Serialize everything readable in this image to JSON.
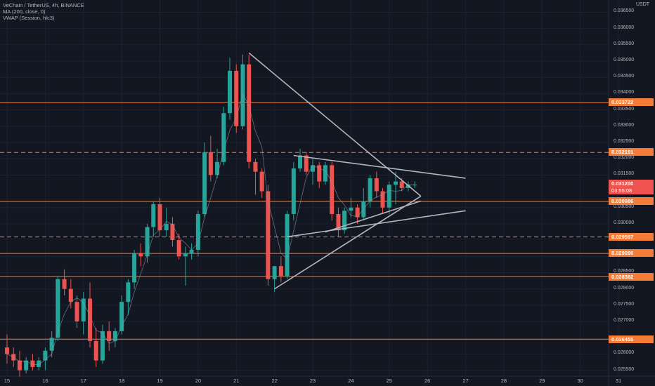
{
  "header": {
    "symbol_line": "VeChain / TetherUS, 4h, BINANCE",
    "ma_line": "MA (200, close, 0)",
    "vwap_line": "VWAP (Session, hlc3)"
  },
  "axis": {
    "currency": "USDT",
    "y_ticks": [
      "0.036500",
      "0.036000",
      "0.035500",
      "0.035000",
      "0.034500",
      "0.034000",
      "0.033500",
      "0.033000",
      "0.032500",
      "0.032000",
      "0.031500",
      "0.030500",
      "0.030000",
      "0.029000",
      "0.028500",
      "0.028000",
      "0.027500",
      "0.027000",
      "0.026000",
      "0.025500"
    ],
    "x_ticks": [
      "15",
      "16",
      "17",
      "18",
      "19",
      "20",
      "21",
      "22",
      "23",
      "24",
      "25",
      "26",
      "27",
      "28",
      "29",
      "30",
      "31"
    ]
  },
  "price_badges": {
    "level_1": "0.033722",
    "level_2": "0.032191",
    "current_price": "0.031200",
    "countdown": "03:55:08",
    "level_3": "0.030686",
    "level_4": "0.029597",
    "level_5": "0.029090",
    "level_6": "0.028382",
    "level_7": "0.026455"
  },
  "colors": {
    "background": "#131722",
    "bull": "#26a69a",
    "bear": "#ef5350",
    "level_line": "#f57c36",
    "trendline": "#b2b5be",
    "current_price": "#ef5350"
  },
  "chart_data": {
    "type": "candlestick",
    "symbol": "VeChain / TetherUS",
    "timeframe": "4h",
    "exchange": "BINANCE",
    "y_range": [
      0.0254,
      0.0368
    ],
    "x_range_days": [
      14.9,
      31.2
    ],
    "horizontal_levels": [
      {
        "price": 0.033722,
        "style": "solid"
      },
      {
        "price": 0.032191,
        "style": "dashed"
      },
      {
        "price": 0.030686,
        "style": "solid"
      },
      {
        "price": 0.029597,
        "style": "dashed"
      },
      {
        "price": 0.02909,
        "style": "solid"
      },
      {
        "price": 0.028382,
        "style": "solid"
      },
      {
        "price": 0.026455,
        "style": "solid"
      }
    ],
    "candles": [
      [
        15.0,
        0.0262,
        0.0266,
        0.0257,
        0.026
      ],
      [
        15.17,
        0.026,
        0.0262,
        0.0256,
        0.0258
      ],
      [
        15.33,
        0.0258,
        0.0261,
        0.0253,
        0.0255
      ],
      [
        15.5,
        0.0255,
        0.0259,
        0.0254,
        0.0258
      ],
      [
        15.67,
        0.0258,
        0.026,
        0.0255,
        0.0256
      ],
      [
        15.83,
        0.0256,
        0.0259,
        0.0255,
        0.0258
      ],
      [
        16.0,
        0.0258,
        0.0262,
        0.0255,
        0.0261
      ],
      [
        16.17,
        0.0261,
        0.0267,
        0.0259,
        0.0265
      ],
      [
        16.33,
        0.0265,
        0.0284,
        0.0264,
        0.0283
      ],
      [
        16.5,
        0.0283,
        0.0286,
        0.0278,
        0.028
      ],
      [
        16.67,
        0.028,
        0.0283,
        0.0274,
        0.0276
      ],
      [
        16.83,
        0.0276,
        0.0278,
        0.0268,
        0.027
      ],
      [
        17.0,
        0.027,
        0.0279,
        0.0266,
        0.0277
      ],
      [
        17.17,
        0.0277,
        0.0282,
        0.0262,
        0.0264
      ],
      [
        17.33,
        0.0264,
        0.0268,
        0.0256,
        0.0258
      ],
      [
        17.5,
        0.0258,
        0.0269,
        0.0257,
        0.0267
      ],
      [
        17.67,
        0.0267,
        0.027,
        0.0261,
        0.0264
      ],
      [
        17.83,
        0.0264,
        0.0268,
        0.0262,
        0.0267
      ],
      [
        18.0,
        0.0267,
        0.0278,
        0.0266,
        0.0276
      ],
      [
        18.17,
        0.0276,
        0.0283,
        0.0272,
        0.0282
      ],
      [
        18.33,
        0.0282,
        0.0292,
        0.028,
        0.0291
      ],
      [
        18.5,
        0.0291,
        0.0294,
        0.0287,
        0.029
      ],
      [
        18.67,
        0.029,
        0.03,
        0.0288,
        0.0299
      ],
      [
        18.83,
        0.0299,
        0.0307,
        0.0296,
        0.0306
      ],
      [
        19.0,
        0.0306,
        0.0308,
        0.0296,
        0.0298
      ],
      [
        19.17,
        0.0298,
        0.0305,
        0.0296,
        0.03
      ],
      [
        19.33,
        0.03,
        0.0302,
        0.0293,
        0.0295
      ],
      [
        19.5,
        0.0295,
        0.0297,
        0.0289,
        0.029
      ],
      [
        19.67,
        0.029,
        0.0293,
        0.0281,
        0.0291
      ],
      [
        19.83,
        0.0291,
        0.0294,
        0.0289,
        0.0292
      ],
      [
        20.0,
        0.0292,
        0.0304,
        0.029,
        0.0303
      ],
      [
        20.17,
        0.0303,
        0.0325,
        0.0302,
        0.0322
      ],
      [
        20.33,
        0.0322,
        0.0327,
        0.0313,
        0.0315
      ],
      [
        20.5,
        0.0315,
        0.0323,
        0.0314,
        0.0319
      ],
      [
        20.67,
        0.0319,
        0.0336,
        0.0318,
        0.0334
      ],
      [
        20.83,
        0.0334,
        0.0351,
        0.0332,
        0.0347
      ],
      [
        21.0,
        0.0347,
        0.0349,
        0.0328,
        0.033
      ],
      [
        21.17,
        0.033,
        0.0352,
        0.0329,
        0.0349
      ],
      [
        21.33,
        0.0349,
        0.0352,
        0.0317,
        0.0319
      ],
      [
        21.5,
        0.0319,
        0.032,
        0.0309,
        0.0316
      ],
      [
        21.67,
        0.0316,
        0.0317,
        0.0308,
        0.031
      ],
      [
        21.83,
        0.031,
        0.0312,
        0.0281,
        0.0283
      ],
      [
        22.0,
        0.0283,
        0.0287,
        0.0279,
        0.0287
      ],
      [
        22.17,
        0.0287,
        0.029,
        0.0282,
        0.0284
      ],
      [
        22.33,
        0.0284,
        0.0304,
        0.0283,
        0.0303
      ],
      [
        22.5,
        0.0303,
        0.0319,
        0.0301,
        0.0317
      ],
      [
        22.67,
        0.0317,
        0.0323,
        0.0316,
        0.0321
      ],
      [
        22.83,
        0.0321,
        0.0322,
        0.0315,
        0.0316
      ],
      [
        23.0,
        0.0316,
        0.032,
        0.0312,
        0.0318
      ],
      [
        23.17,
        0.0318,
        0.0319,
        0.0311,
        0.0313
      ],
      [
        23.33,
        0.0313,
        0.0319,
        0.0312,
        0.0318
      ],
      [
        23.5,
        0.0318,
        0.0319,
        0.0301,
        0.0303
      ],
      [
        23.67,
        0.0303,
        0.0305,
        0.0296,
        0.0298
      ],
      [
        23.83,
        0.0298,
        0.0305,
        0.0297,
        0.0304
      ],
      [
        24.0,
        0.0304,
        0.0308,
        0.0302,
        0.0305
      ],
      [
        24.17,
        0.0305,
        0.0306,
        0.03,
        0.0302
      ],
      [
        24.33,
        0.0302,
        0.0311,
        0.0301,
        0.0307
      ],
      [
        24.5,
        0.0307,
        0.0315,
        0.0305,
        0.0314
      ],
      [
        24.67,
        0.0314,
        0.0316,
        0.0308,
        0.031
      ],
      [
        24.83,
        0.031,
        0.0311,
        0.0303,
        0.0305
      ],
      [
        25.0,
        0.0305,
        0.0313,
        0.0303,
        0.0312
      ],
      [
        25.17,
        0.0312,
        0.0316,
        0.0306,
        0.0313
      ],
      [
        25.33,
        0.0313,
        0.0314,
        0.031,
        0.0311
      ],
      [
        25.5,
        0.0311,
        0.0313,
        0.031,
        0.0312
      ],
      [
        25.67,
        0.0312,
        0.0313,
        0.0311,
        0.0312
      ]
    ]
  }
}
